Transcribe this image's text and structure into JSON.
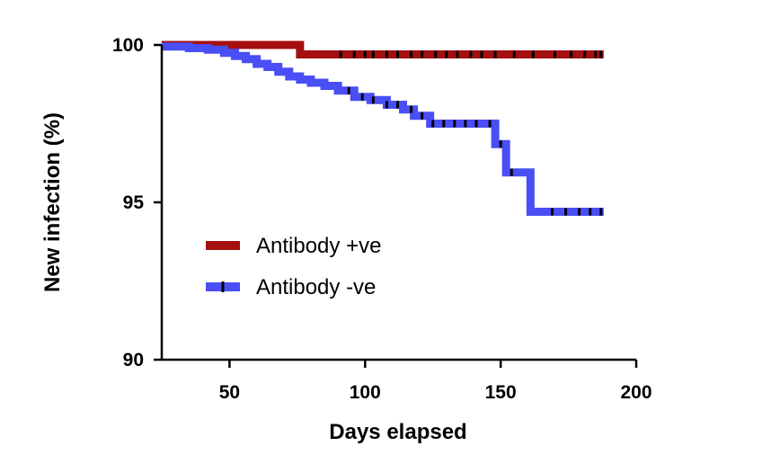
{
  "chart_data": {
    "type": "line",
    "step": true,
    "title": "",
    "xlabel": "Days elapsed",
    "ylabel": "New infection (%)",
    "xlim": [
      25,
      200
    ],
    "ylim": [
      90,
      100
    ],
    "xticks": [
      50,
      100,
      150,
      200
    ],
    "yticks": [
      90,
      95,
      100
    ],
    "x_tick_labels": [
      "50",
      "100",
      "150",
      "200"
    ],
    "y_tick_labels": [
      "90",
      "95",
      "100"
    ],
    "grid": false,
    "legend_position": "center-left",
    "series": [
      {
        "name": "Antibody +ve",
        "color": "#a50f0f",
        "steps": [
          [
            25,
            100
          ],
          [
            76,
            99.7
          ],
          [
            188,
            99.7
          ]
        ],
        "censored_x": [
          91,
          96,
          100,
          103,
          108,
          112,
          117,
          121,
          126,
          130,
          134,
          139,
          143,
          148,
          155,
          162,
          170,
          176,
          181,
          185,
          187
        ]
      },
      {
        "name": "Antibody -ve",
        "color": "#4a4ef5",
        "steps": [
          [
            25,
            99.95
          ],
          [
            35,
            99.9
          ],
          [
            42,
            99.85
          ],
          [
            48,
            99.75
          ],
          [
            52,
            99.65
          ],
          [
            56,
            99.55
          ],
          [
            60,
            99.4
          ],
          [
            64,
            99.3
          ],
          [
            68,
            99.15
          ],
          [
            72,
            99.0
          ],
          [
            76,
            98.9
          ],
          [
            80,
            98.8
          ],
          [
            85,
            98.7
          ],
          [
            90,
            98.55
          ],
          [
            96,
            98.35
          ],
          [
            102,
            98.25
          ],
          [
            108,
            98.1
          ],
          [
            114,
            97.95
          ],
          [
            118,
            97.75
          ],
          [
            124,
            97.5
          ],
          [
            148,
            96.85
          ],
          [
            152,
            95.95
          ],
          [
            161,
            94.7
          ],
          [
            188,
            94.7
          ]
        ],
        "censored_x": [
          94,
          99,
          103,
          108,
          112,
          117,
          121,
          125,
          129,
          133,
          137,
          141,
          146,
          150,
          154,
          169,
          174,
          179,
          183,
          187
        ]
      }
    ]
  }
}
